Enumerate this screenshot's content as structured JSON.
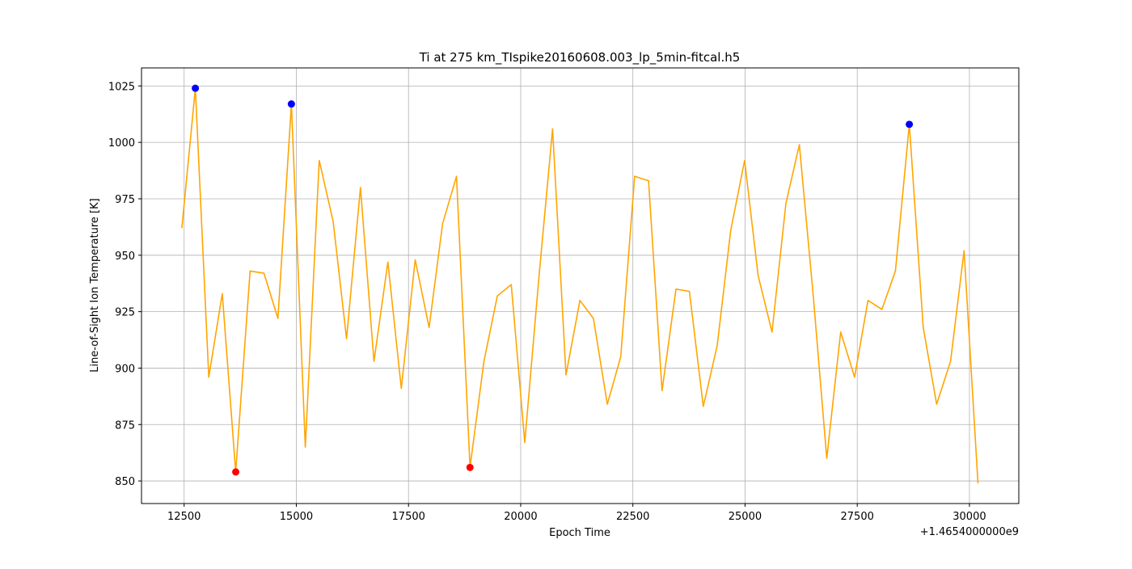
{
  "chart_data": {
    "type": "line",
    "title": "Ti at 275 km_TIspike20160608.003_lp_5min-fitcal.h5",
    "xlabel": "Epoch Time",
    "ylabel": "Line-of-Sight Ion Temperature [K]",
    "x_offset_label": "+1.4654000000e9",
    "xlim": [
      11550,
      31100
    ],
    "ylim": [
      840,
      1033
    ],
    "grid": true,
    "xticks": [
      12500,
      15000,
      17500,
      20000,
      22500,
      25000,
      27500,
      30000
    ],
    "xtick_labels": [
      "12500",
      "15000",
      "17500",
      "20000",
      "22500",
      "25000",
      "27500",
      "30000"
    ],
    "yticks": [
      850,
      875,
      900,
      925,
      950,
      975,
      1000,
      1025
    ],
    "ytick_labels": [
      "850",
      "875",
      "900",
      "925",
      "950",
      "975",
      "1000",
      "1025"
    ],
    "series": [
      {
        "color": "#ffa500",
        "x": [
          12450,
          12750,
          13050,
          13350,
          13650,
          13970,
          14280,
          14590,
          14890,
          15200,
          15510,
          15820,
          16120,
          16430,
          16730,
          17040,
          17340,
          17650,
          17960,
          18260,
          18570,
          18870,
          19180,
          19480,
          19790,
          20090,
          20400,
          20710,
          21010,
          21320,
          21620,
          21930,
          22230,
          22540,
          22850,
          23150,
          23460,
          23760,
          24070,
          24380,
          24680,
          24990,
          25290,
          25600,
          25910,
          26210,
          26520,
          26820,
          27130,
          27440,
          27740,
          28050,
          28350,
          28660,
          28970,
          29270,
          29580,
          29880,
          30190
        ],
        "y": [
          962,
          1024,
          896,
          933,
          854,
          943,
          942,
          922,
          1017,
          865,
          992,
          965,
          913,
          980,
          903,
          947,
          891,
          948,
          918,
          964,
          985,
          856,
          903,
          932,
          937,
          867,
          939,
          1006,
          897,
          930,
          922,
          884,
          905,
          985,
          983,
          890,
          935,
          934,
          883,
          910,
          961,
          992,
          941,
          916,
          973,
          999,
          932,
          860,
          916,
          896,
          930,
          926,
          943,
          1008,
          918,
          884,
          903,
          952,
          849
        ]
      }
    ],
    "scatter_points": [
      {
        "color": "#0000ff",
        "x": [
          12750,
          14890,
          28660
        ],
        "y": [
          1024,
          1017,
          1008
        ]
      },
      {
        "color": "#ff0000",
        "x": [
          13650,
          18870
        ],
        "y": [
          854,
          856
        ]
      }
    ]
  }
}
